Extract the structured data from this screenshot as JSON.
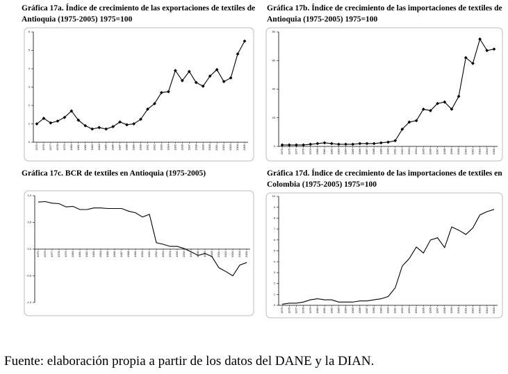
{
  "chart_data": [
    {
      "type": "line",
      "title": "Gráfica 17a. Índice de crecimiento de las exportaciones de textiles de Antioquia (1975-2005) 1975=100",
      "categories": [
        "1975",
        "1976",
        "1977",
        "1978",
        "1979",
        "1980",
        "1981",
        "1982",
        "1983",
        "1984",
        "1985",
        "1986",
        "1987",
        "1988",
        "1989",
        "1990",
        "1991",
        "1992",
        "1993",
        "1994",
        "1995",
        "1996",
        "1997",
        "1998",
        "1999",
        "2000",
        "2001",
        "2002",
        "2003",
        "2004",
        "2005"
      ],
      "values": [
        1.0,
        1.3,
        1.05,
        1.15,
        1.35,
        1.7,
        1.2,
        0.9,
        0.72,
        0.8,
        0.72,
        0.85,
        1.1,
        0.95,
        1.0,
        1.25,
        1.8,
        2.1,
        2.7,
        2.75,
        3.9,
        3.35,
        3.85,
        3.25,
        3.05,
        3.6,
        3.95,
        3.3,
        3.5,
        4.8,
        5.5
      ],
      "color": "#000000",
      "marker": true,
      "ylim": [
        0,
        6
      ],
      "yticks": [
        0,
        1,
        2,
        3,
        4,
        5,
        6
      ]
    },
    {
      "type": "line",
      "title": "Gráfica 17b. Índice de crecimiento de las importaciones de textiles de Antioquia (1975-2005) 1975=100",
      "categories": [
        "1975",
        "1976",
        "1977",
        "1978",
        "1979",
        "1980",
        "1981",
        "1982",
        "1983",
        "1984",
        "1985",
        "1986",
        "1987",
        "1988",
        "1989",
        "1990",
        "1991",
        "1992",
        "1993",
        "1994",
        "1995",
        "1996",
        "1997",
        "1998",
        "1999",
        "2000",
        "2001",
        "2002",
        "2003",
        "2004",
        "2005"
      ],
      "values": [
        1,
        1,
        1,
        1,
        1.5,
        2,
        2.5,
        2,
        1.5,
        1.5,
        1.5,
        2,
        2,
        2,
        2.5,
        3,
        4,
        12,
        17,
        18,
        26,
        25,
        30,
        31,
        26,
        35,
        62,
        58,
        75,
        67,
        68
      ],
      "color": "#000000",
      "marker": true,
      "ylim": [
        0,
        80
      ],
      "yticks": [
        0,
        20,
        40,
        60,
        80
      ]
    },
    {
      "type": "line",
      "title": "Gráfica 17c. BCR de textiles en Antioquia (1975-2005)",
      "categories": [
        "1975",
        "1976",
        "1977",
        "1978",
        "1979",
        "1980",
        "1981",
        "1982",
        "1983",
        "1984",
        "1985",
        "1986",
        "1987",
        "1988",
        "1989",
        "1990",
        "1991",
        "1992",
        "1993",
        "1994",
        "1995",
        "1996",
        "1997",
        "1998",
        "1999",
        "2000",
        "2001",
        "2002",
        "2003",
        "2004",
        "2005"
      ],
      "values": [
        0.88,
        0.89,
        0.86,
        0.85,
        0.79,
        0.8,
        0.74,
        0.74,
        0.77,
        0.77,
        0.76,
        0.76,
        0.76,
        0.71,
        0.68,
        0.6,
        0.65,
        0.12,
        0.09,
        0.05,
        0.05,
        0.01,
        -0.05,
        -0.12,
        -0.08,
        -0.14,
        -0.35,
        -0.42,
        -0.5,
        -0.3,
        -0.25
      ],
      "color": "#000000",
      "marker": false,
      "ylim": [
        -1,
        1
      ],
      "yticks": [
        {
          "value": -1,
          "label": "-1,0"
        },
        {
          "value": -0.5,
          "label": "-0,5"
        },
        {
          "value": 0,
          "label": "0,0"
        },
        {
          "value": 0.5,
          "label": "0,5"
        },
        {
          "value": 1,
          "label": "1,0"
        }
      ]
    },
    {
      "type": "line",
      "title": "Gráfica 17d. Índice de crecimiento de las importaciones de textiles en Colombia (1975-2005) 1975=100",
      "categories": [
        "1975",
        "1976",
        "1977",
        "1978",
        "1979",
        "1980",
        "1981",
        "1982",
        "1983",
        "1984",
        "1985",
        "1986",
        "1987",
        "1988",
        "1989",
        "1990",
        "1991",
        "1992",
        "1993",
        "1994",
        "1995",
        "1996",
        "1997",
        "1998",
        "1999",
        "2000",
        "2001",
        "2002",
        "2003",
        "2004",
        "2005"
      ],
      "values": [
        0.1,
        0.2,
        0.2,
        0.3,
        0.5,
        0.6,
        0.5,
        0.5,
        0.3,
        0.3,
        0.3,
        0.4,
        0.4,
        0.5,
        0.6,
        0.8,
        1.6,
        3.6,
        4.3,
        5.35,
        4.8,
        6.0,
        6.2,
        5.3,
        7.2,
        6.9,
        6.5,
        7.1,
        8.3,
        8.6,
        8.8
      ],
      "color": "#000000",
      "marker": false,
      "ylim": [
        0,
        10
      ],
      "yticks": [
        0,
        1,
        2,
        3,
        4,
        5,
        6,
        7,
        8,
        9,
        10
      ]
    }
  ],
  "source": "Fuente: elaboración propia a partir de los datos del DANE y la DIAN."
}
